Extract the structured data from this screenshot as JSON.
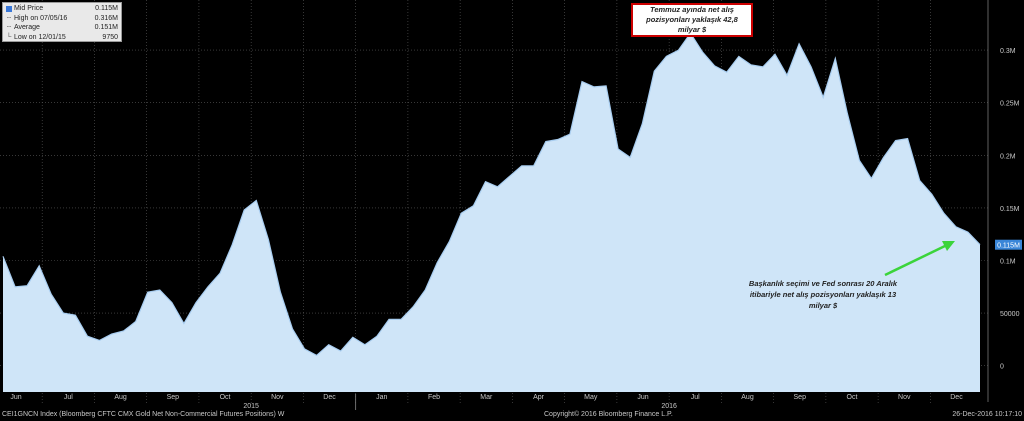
{
  "legend": {
    "rows": [
      {
        "label": "Mid Price",
        "value": "0.115M",
        "marker": "swatch"
      },
      {
        "label": "High on 07/05/16",
        "value": "0.316M",
        "marker": "line"
      },
      {
        "label": "Average",
        "value": "0.151M",
        "marker": "line"
      },
      {
        "label": "Low on 12/01/15",
        "value": "9750",
        "marker": "line"
      }
    ]
  },
  "annotations": {
    "top": "Temmuz ayında net alış pozisyonları yaklaşık 42,8 milyar $",
    "bottom": "Başkanlık seçimi ve Fed sonrası 20 Aralık itibariyle net alış pozisyonları yaklaşık 13 milyar $"
  },
  "footer": {
    "left": "CEI1GNCN Index (Bloomberg CFTC CMX Gold Net Non-Commercial Futures Positions)  W",
    "center": "Copyright© 2016 Bloomberg Finance L.P.",
    "right": "26-Dec-2016 10:17:10"
  },
  "colors": {
    "background": "#000000",
    "fill": "#cfe5f8",
    "line": "#a8cdf0",
    "grid": "#5a5a5a",
    "last_badge": "#3a86d8",
    "arrow": "#3bd43b",
    "annotation_border": "#cc0000",
    "axis_text": "#c8c8c8"
  },
  "chart_data": {
    "type": "area",
    "title": "",
    "xlabel": "",
    "ylabel": "",
    "ylim": [
      -25000,
      340000
    ],
    "y_ticks": [
      0,
      50000,
      100000,
      150000,
      200000,
      250000,
      300000
    ],
    "y_tick_labels": [
      "0",
      "50000",
      "0.1M",
      "0.15M",
      "0.2M",
      "0.25M",
      "0.3M"
    ],
    "x_month_labels": [
      "Jun",
      "Jul",
      "Aug",
      "Sep",
      "Oct",
      "Nov",
      "Dec",
      "Jan",
      "Feb",
      "Mar",
      "Apr",
      "May",
      "Jun",
      "Jul",
      "Aug",
      "Sep",
      "Oct",
      "Nov",
      "Dec"
    ],
    "x_year_labels": [
      "2015",
      "2016"
    ],
    "last_value_label": "0.115M",
    "grid": true,
    "series": [
      {
        "values": [
          104000,
          75000,
          76000,
          95000,
          68000,
          50000,
          48000,
          28000,
          24000,
          30000,
          33000,
          42000,
          70000,
          72000,
          60000,
          40000,
          60000,
          75000,
          88000,
          115000,
          148000,
          157000,
          120000,
          70000,
          35000,
          16000,
          9750,
          20000,
          14000,
          27000,
          20000,
          28000,
          44000,
          44000,
          56000,
          72000,
          98000,
          118000,
          145000,
          152000,
          175000,
          170000,
          180000,
          190000,
          190000,
          213000,
          215000,
          220000,
          270000,
          265000,
          266000,
          206000,
          198000,
          230000,
          280000,
          294000,
          300000,
          316000,
          298000,
          285000,
          279000,
          294000,
          286000,
          284000,
          296000,
          276000,
          306000,
          284000,
          255000,
          292000,
          240000,
          195000,
          178000,
          198000,
          214000,
          216000,
          176000,
          163000,
          145000,
          132000,
          127000,
          115000
        ]
      }
    ]
  }
}
